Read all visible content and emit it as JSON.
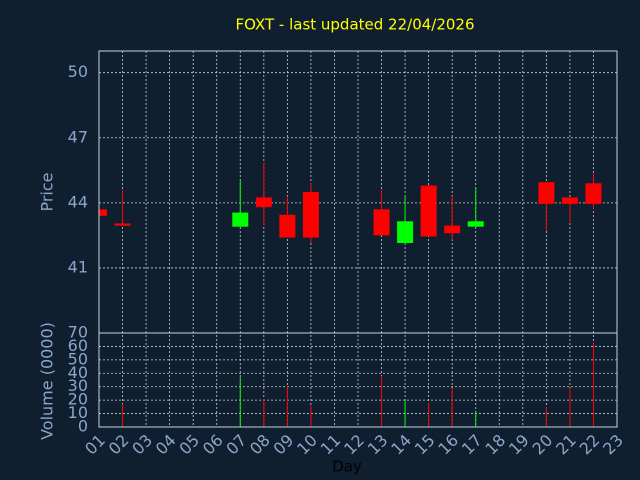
{
  "chart_data": {
    "type": "candlestick",
    "title": "FOXT - last updated 22/04/2026",
    "x_label": "Day",
    "y_label": "Price",
    "categories": [
      "01",
      "02",
      "03",
      "04",
      "05",
      "06",
      "07",
      "08",
      "09",
      "10",
      "11",
      "12",
      "13",
      "14",
      "15",
      "16",
      "17",
      "18",
      "19",
      "20",
      "21",
      "22",
      "23"
    ],
    "open": [
      43.7,
      43.05,
      null,
      null,
      null,
      null,
      42.9,
      44.25,
      43.45,
      44.5,
      null,
      null,
      43.7,
      42.15,
      44.8,
      42.95,
      42.9,
      null,
      null,
      44.95,
      44.25,
      44.9,
      null
    ],
    "high": [
      43.7,
      44.6,
      null,
      null,
      null,
      null,
      45.05,
      45.85,
      44.3,
      44.9,
      null,
      null,
      44.6,
      44.35,
      44.8,
      44.3,
      44.7,
      null,
      null,
      44.95,
      44.25,
      45.35,
      null
    ],
    "low": [
      43.4,
      42.95,
      null,
      null,
      null,
      null,
      42.9,
      42.95,
      42.4,
      42.15,
      null,
      null,
      42.5,
      42.15,
      42.45,
      42.3,
      42.9,
      null,
      null,
      42.7,
      43.1,
      43.7,
      null
    ],
    "close": [
      43.4,
      42.95,
      null,
      null,
      null,
      null,
      43.55,
      43.8,
      42.4,
      42.4,
      null,
      null,
      42.5,
      43.15,
      42.45,
      42.6,
      43.15,
      null,
      null,
      43.95,
      43.95,
      43.95,
      null
    ],
    "ylim": [
      38,
      51
    ],
    "yticks": [
      41,
      44,
      47,
      50
    ],
    "up_color": "#00ff00",
    "down_color": "#ff0000",
    "grid": true,
    "volume": {
      "label": "Volume (0000)",
      "values": [
        null,
        17,
        null,
        null,
        null,
        null,
        37,
        21,
        30,
        16,
        null,
        null,
        38,
        20,
        18,
        29,
        12,
        null,
        null,
        15,
        29,
        63,
        null
      ],
      "ylim": [
        0,
        70
      ],
      "yticks": [
        0,
        10,
        20,
        30,
        40,
        50,
        60,
        70
      ]
    }
  }
}
